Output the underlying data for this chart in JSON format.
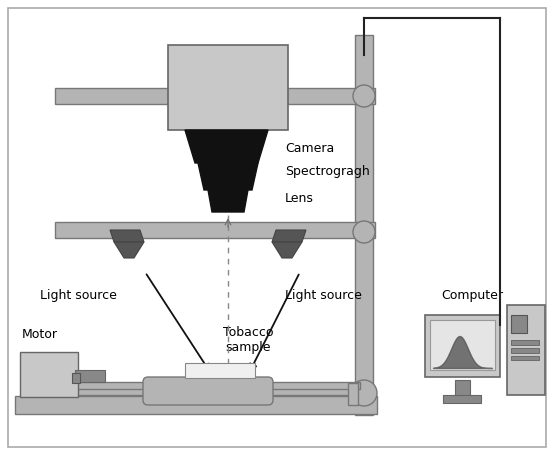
{
  "bg_color": "#ffffff",
  "gray_light": "#c8c8c8",
  "gray_medium": "#b4b4b4",
  "gray_dark": "#888888",
  "gray_darker": "#606060",
  "black": "#000000",
  "labels": {
    "camera": "Camera",
    "spectrograph": "Spectrogragh",
    "lens": "Lens",
    "light_source_left": "Light source",
    "light_source_right": "Light source",
    "motor": "Motor",
    "tobacco": "Tobacco\nsample",
    "computer": "Computer"
  },
  "figsize": [
    5.54,
    4.55
  ],
  "dpi": 100
}
